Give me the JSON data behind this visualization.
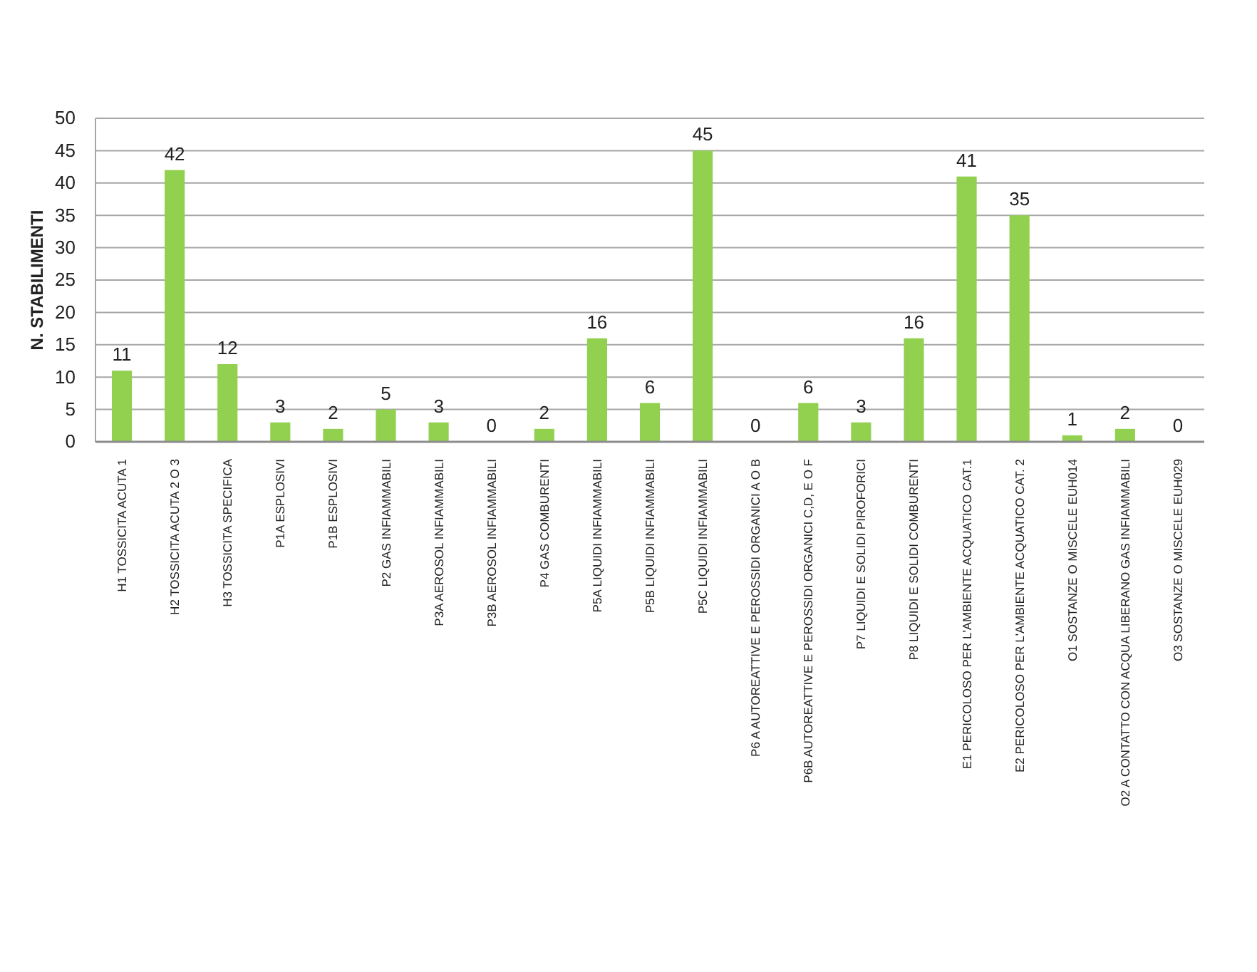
{
  "chart_data": {
    "type": "bar",
    "ylabel": "N. STABILIMENTI",
    "categories": [
      "H1 TOSSICITA ACUTA 1",
      "H2 TOSSICITA ACUTA 2 O 3",
      "H3 TOSSICITA SPECIFICA",
      "P1A ESPLOSIVI",
      "P1B ESPLOSIVI",
      "P2 GAS INFIAMMABILI",
      "P3A AEROSOL INFIAMMABILI",
      "P3B AEROSOL INFIAMMABILI",
      "P4 GAS COMBURENTI",
      "P5A LIQUIDI INFIAMMABILI",
      "P5B LIQUIDI INFIAMMABILI",
      "P5C LIQUIDI INFIAMMABILI",
      "P6 A AUTOREATTIVE E PEROSSIDI ORGANICI A O B",
      "P6B AUTOREATTIVE E PEROSSIDI ORGANICI C,D, E O F",
      "P7 LIQUIDI E SOLIDI PIROFORICI",
      "P8 LIQUIDI E SOLIDI COMBURENTI",
      "E1 PERICOLOSO PER L'AMBIENTE ACQUATICO CAT.1",
      "E2 PERICOLOSO PER L'AMBIENTE ACQUATICO CAT. 2",
      "O1 SOSTANZE O MISCELE EUH014",
      "O2 A CONTATTO CON ACQUA LIBERANO GAS INFIAMMABILI",
      "O3 SOSTANZE O MISCELE EUH029"
    ],
    "values": [
      11,
      42,
      12,
      3,
      2,
      5,
      3,
      0,
      2,
      16,
      6,
      45,
      0,
      6,
      3,
      16,
      41,
      35,
      1,
      2,
      0
    ],
    "color": "#92d050",
    "ylim": [
      0,
      50
    ],
    "yticks": [
      0,
      5,
      10,
      15,
      20,
      25,
      30,
      35,
      40,
      45,
      50
    ],
    "grid": "y",
    "data_labels": true
  }
}
